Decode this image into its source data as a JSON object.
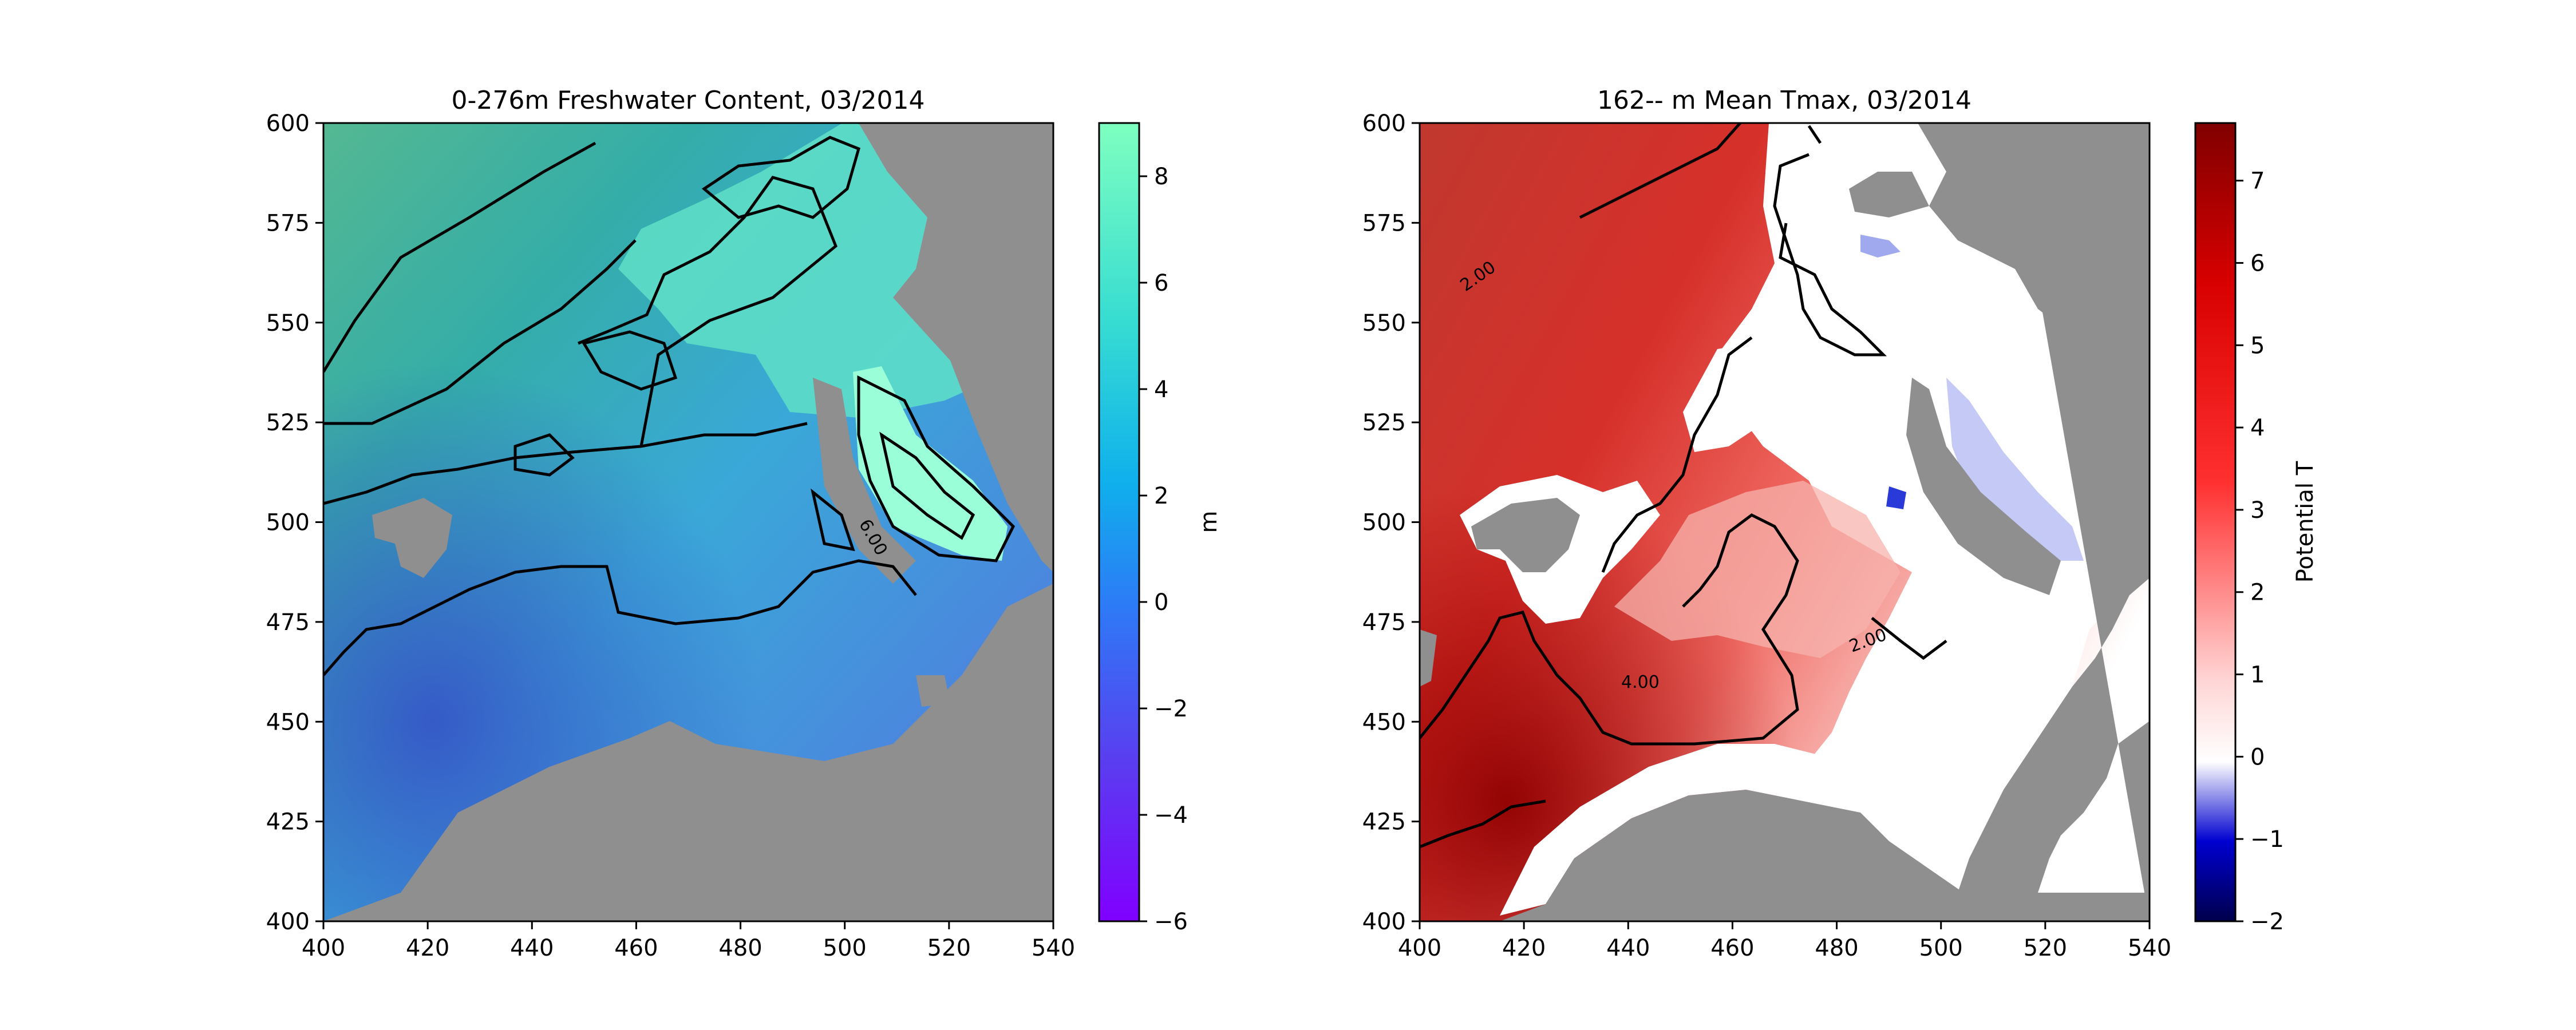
{
  "chart_data": [
    {
      "type": "heatmap",
      "title": "0-276m Freshwater Content, 03/2014",
      "xlabel": "",
      "ylabel": "",
      "xlim": [
        400,
        540
      ],
      "ylim": [
        400,
        600
      ],
      "x_ticks": [
        400,
        420,
        440,
        460,
        480,
        500,
        520,
        540
      ],
      "y_ticks": [
        400,
        425,
        450,
        475,
        500,
        525,
        550,
        575,
        600
      ],
      "colorbar": {
        "label": "m",
        "range": [
          -6,
          9
        ],
        "ticks": [
          -6,
          -4,
          -2,
          0,
          2,
          4,
          6,
          8
        ],
        "colormap": "rainbow (purple → blue → cyan → green)"
      },
      "contour_labels": [
        {
          "text": "6.00",
          "x": 504,
          "y": 501
        }
      ],
      "land_color": "#8f8f8f"
    },
    {
      "type": "heatmap",
      "title": "162-- m Mean Tmax, 03/2014",
      "xlabel": "",
      "ylabel": "",
      "xlim": [
        400,
        540
      ],
      "ylim": [
        400,
        600
      ],
      "x_ticks": [
        400,
        420,
        440,
        460,
        480,
        500,
        520,
        540
      ],
      "y_ticks": [
        400,
        425,
        450,
        475,
        500,
        525,
        550,
        575,
        600
      ],
      "colorbar": {
        "label": "Potential T",
        "range": [
          -2,
          7.7
        ],
        "ticks": [
          -2,
          -1,
          0,
          1,
          2,
          3,
          4,
          5,
          6,
          7
        ],
        "colormap": "seismic (dark blue → white → dark red)"
      },
      "contour_labels": [
        {
          "text": "2.00",
          "x": 413,
          "y": 563
        },
        {
          "text": "4.00",
          "x": 443,
          "y": 459
        },
        {
          "text": "2.00",
          "x": 486,
          "y": 471
        }
      ],
      "land_color": "#8f8f8f"
    }
  ]
}
